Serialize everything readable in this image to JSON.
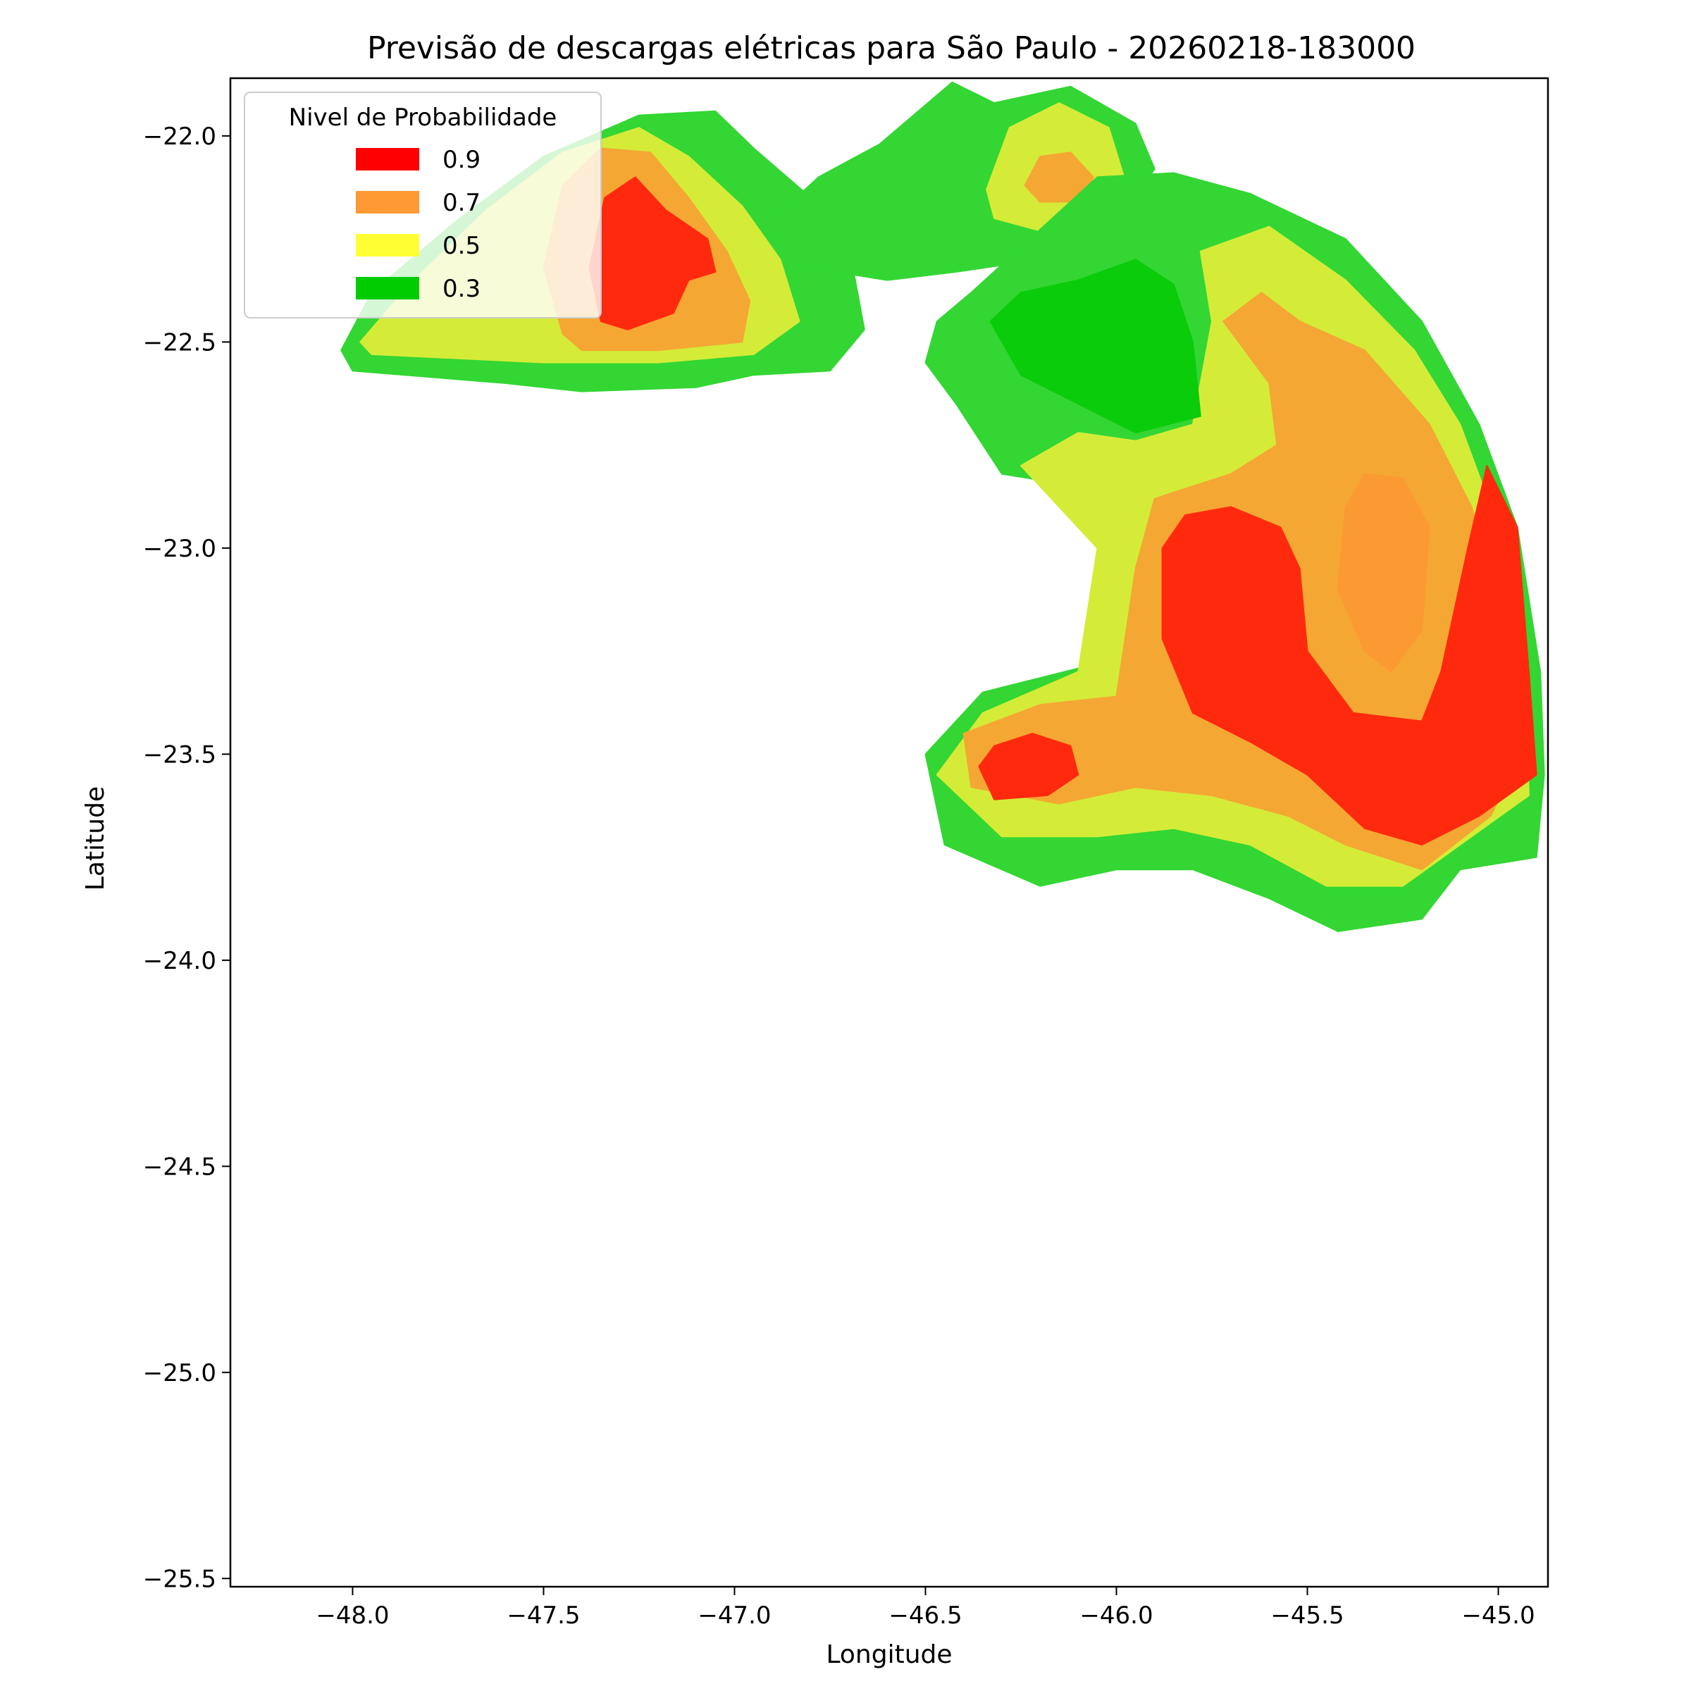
{
  "chart_data": {
    "type": "contour",
    "title": "Previsão de descargas elétricas para São Paulo - 20260218-183000",
    "xlabel": "Longitude",
    "ylabel": "Latitude",
    "xlim": [
      -48.32,
      -44.87
    ],
    "ylim": [
      -25.52,
      -21.86
    ],
    "xticks": [
      -48.0,
      -47.5,
      -47.0,
      -46.5,
      -46.0,
      -45.5,
      -45.0
    ],
    "xtick_labels": [
      "−48.0",
      "−47.5",
      "−47.0",
      "−46.5",
      "−46.0",
      "−45.5",
      "−45.0"
    ],
    "yticks": [
      -22.0,
      -22.5,
      -23.0,
      -23.5,
      -24.0,
      -24.5,
      -25.0,
      -25.5
    ],
    "ytick_labels": [
      "−22.0",
      "−22.5",
      "−23.0",
      "−23.5",
      "−24.0",
      "−24.5",
      "−25.0",
      "−25.5"
    ],
    "grid": false,
    "legend": {
      "title": "Nivel de Probabilidade",
      "placement": "upper-left",
      "entries": [
        {
          "label": "0.9",
          "color": "#ff0000"
        },
        {
          "label": "0.7",
          "color": "#ff9933"
        },
        {
          "label": "0.5",
          "color": "#ffff33"
        },
        {
          "label": "0.3",
          "color": "#00cc00"
        }
      ]
    },
    "level_colors": {
      "green": "#33d633",
      "dark_green": "#0acc0a",
      "yellow": "#d4ec38",
      "orange": "#f5a733",
      "orange_core": "#fb9a33",
      "red": "#ff2a0d"
    },
    "regions": [
      {
        "name": "west-cell-green",
        "color": "#33d633",
        "points": [
          [
            -48.03,
            -22.52
          ],
          [
            -47.95,
            -22.38
          ],
          [
            -47.72,
            -22.2
          ],
          [
            -47.5,
            -22.05
          ],
          [
            -47.25,
            -21.95
          ],
          [
            -47.05,
            -21.94
          ],
          [
            -46.95,
            -22.03
          ],
          [
            -46.8,
            -22.15
          ],
          [
            -46.7,
            -22.27
          ],
          [
            -46.66,
            -22.47
          ],
          [
            -46.75,
            -22.57
          ],
          [
            -46.95,
            -22.58
          ],
          [
            -47.1,
            -22.61
          ],
          [
            -47.4,
            -22.62
          ],
          [
            -47.6,
            -22.6
          ],
          [
            -48.0,
            -22.57
          ]
        ]
      },
      {
        "name": "west-cell-yellow",
        "color": "#d4ec38",
        "points": [
          [
            -47.98,
            -22.5
          ],
          [
            -47.85,
            -22.36
          ],
          [
            -47.65,
            -22.18
          ],
          [
            -47.45,
            -22.04
          ],
          [
            -47.25,
            -21.98
          ],
          [
            -47.12,
            -22.05
          ],
          [
            -46.98,
            -22.17
          ],
          [
            -46.88,
            -22.3
          ],
          [
            -46.83,
            -22.45
          ],
          [
            -46.95,
            -22.53
          ],
          [
            -47.2,
            -22.55
          ],
          [
            -47.5,
            -22.55
          ],
          [
            -47.95,
            -22.53
          ]
        ]
      },
      {
        "name": "west-cell-orange",
        "color": "#f5a733",
        "points": [
          [
            -47.45,
            -22.48
          ],
          [
            -47.5,
            -22.32
          ],
          [
            -47.45,
            -22.12
          ],
          [
            -47.35,
            -22.03
          ],
          [
            -47.22,
            -22.04
          ],
          [
            -47.12,
            -22.15
          ],
          [
            -47.02,
            -22.28
          ],
          [
            -46.96,
            -22.4
          ],
          [
            -46.98,
            -22.5
          ],
          [
            -47.2,
            -22.52
          ],
          [
            -47.4,
            -22.52
          ]
        ]
      },
      {
        "name": "west-cell-red",
        "color": "#ff2a0d",
        "points": [
          [
            -47.35,
            -22.45
          ],
          [
            -47.38,
            -22.32
          ],
          [
            -47.34,
            -22.15
          ],
          [
            -47.26,
            -22.1
          ],
          [
            -47.18,
            -22.18
          ],
          [
            -47.07,
            -22.25
          ],
          [
            -47.05,
            -22.33
          ],
          [
            -47.12,
            -22.35
          ],
          [
            -47.16,
            -22.43
          ],
          [
            -47.28,
            -22.47
          ]
        ]
      },
      {
        "name": "north-cell-green",
        "color": "#33d633",
        "points": [
          [
            -46.92,
            -22.22
          ],
          [
            -46.78,
            -22.1
          ],
          [
            -46.62,
            -22.02
          ],
          [
            -46.43,
            -21.87
          ],
          [
            -46.32,
            -21.92
          ],
          [
            -46.12,
            -21.88
          ],
          [
            -45.95,
            -21.97
          ],
          [
            -45.9,
            -22.08
          ],
          [
            -46.0,
            -22.22
          ],
          [
            -46.2,
            -22.3
          ],
          [
            -46.42,
            -22.33
          ],
          [
            -46.6,
            -22.35
          ],
          [
            -46.8,
            -22.32
          ]
        ]
      },
      {
        "name": "north-cell-yellow",
        "color": "#d4ec38",
        "points": [
          [
            -46.34,
            -22.13
          ],
          [
            -46.28,
            -21.98
          ],
          [
            -46.15,
            -21.92
          ],
          [
            -46.02,
            -21.98
          ],
          [
            -45.98,
            -22.1
          ],
          [
            -46.05,
            -22.2
          ],
          [
            -46.2,
            -22.23
          ],
          [
            -46.32,
            -22.2
          ]
        ]
      },
      {
        "name": "north-cell-orange",
        "color": "#f5a733",
        "points": [
          [
            -46.24,
            -22.12
          ],
          [
            -46.2,
            -22.05
          ],
          [
            -46.12,
            -22.04
          ],
          [
            -46.06,
            -22.1
          ],
          [
            -46.1,
            -22.16
          ],
          [
            -46.2,
            -22.16
          ]
        ]
      },
      {
        "name": "east-band-green",
        "color": "#33d633",
        "points": [
          [
            -46.47,
            -22.45
          ],
          [
            -46.38,
            -22.38
          ],
          [
            -46.25,
            -22.27
          ],
          [
            -46.05,
            -22.1
          ],
          [
            -45.85,
            -22.09
          ],
          [
            -45.65,
            -22.14
          ],
          [
            -45.4,
            -22.25
          ],
          [
            -45.2,
            -22.45
          ],
          [
            -45.05,
            -22.7
          ],
          [
            -44.95,
            -22.95
          ],
          [
            -44.89,
            -23.3
          ],
          [
            -44.88,
            -23.55
          ],
          [
            -44.9,
            -23.75
          ],
          [
            -45.1,
            -23.78
          ],
          [
            -45.2,
            -23.9
          ],
          [
            -45.42,
            -23.93
          ],
          [
            -45.6,
            -23.85
          ],
          [
            -45.8,
            -23.78
          ],
          [
            -46.0,
            -23.78
          ],
          [
            -46.2,
            -23.82
          ],
          [
            -46.45,
            -23.72
          ],
          [
            -46.5,
            -23.5
          ],
          [
            -46.35,
            -23.35
          ],
          [
            -46.05,
            -23.28
          ],
          [
            -45.98,
            -23.0
          ],
          [
            -46.1,
            -22.85
          ],
          [
            -46.3,
            -22.82
          ],
          [
            -46.42,
            -22.65
          ],
          [
            -46.5,
            -22.55
          ]
        ]
      },
      {
        "name": "east-band-yellow",
        "color": "#d4ec38",
        "points": [
          [
            -46.25,
            -22.8
          ],
          [
            -46.1,
            -22.72
          ],
          [
            -45.95,
            -22.74
          ],
          [
            -45.8,
            -22.7
          ],
          [
            -45.75,
            -22.45
          ],
          [
            -45.78,
            -22.28
          ],
          [
            -45.6,
            -22.22
          ],
          [
            -45.4,
            -22.35
          ],
          [
            -45.22,
            -22.52
          ],
          [
            -45.1,
            -22.7
          ],
          [
            -45.0,
            -22.95
          ],
          [
            -44.93,
            -23.3
          ],
          [
            -44.92,
            -23.6
          ],
          [
            -45.1,
            -23.72
          ],
          [
            -45.25,
            -23.82
          ],
          [
            -45.45,
            -23.82
          ],
          [
            -45.65,
            -23.72
          ],
          [
            -45.85,
            -23.68
          ],
          [
            -46.05,
            -23.7
          ],
          [
            -46.3,
            -23.7
          ],
          [
            -46.47,
            -23.55
          ],
          [
            -46.35,
            -23.4
          ],
          [
            -46.1,
            -23.3
          ],
          [
            -46.05,
            -23.0
          ],
          [
            -46.15,
            -22.9
          ]
        ]
      },
      {
        "name": "east-band-orange",
        "color": "#f5a733",
        "points": [
          [
            -45.72,
            -22.45
          ],
          [
            -45.62,
            -22.38
          ],
          [
            -45.52,
            -22.45
          ],
          [
            -45.35,
            -22.52
          ],
          [
            -45.18,
            -22.7
          ],
          [
            -45.07,
            -22.9
          ],
          [
            -44.98,
            -23.2
          ],
          [
            -44.94,
            -23.5
          ],
          [
            -45.02,
            -23.65
          ],
          [
            -45.2,
            -23.78
          ],
          [
            -45.4,
            -23.72
          ],
          [
            -45.55,
            -23.65
          ],
          [
            -45.75,
            -23.6
          ],
          [
            -45.95,
            -23.58
          ],
          [
            -46.15,
            -23.62
          ],
          [
            -46.38,
            -23.58
          ],
          [
            -46.4,
            -23.45
          ],
          [
            -46.2,
            -23.38
          ],
          [
            -46.0,
            -23.36
          ],
          [
            -45.95,
            -23.05
          ],
          [
            -45.9,
            -22.88
          ],
          [
            -45.7,
            -22.82
          ],
          [
            -45.58,
            -22.75
          ],
          [
            -45.6,
            -22.6
          ]
        ]
      },
      {
        "name": "east-band-red",
        "color": "#ff2a0d",
        "points": [
          [
            -45.88,
            -23.0
          ],
          [
            -45.82,
            -22.92
          ],
          [
            -45.7,
            -22.9
          ],
          [
            -45.57,
            -22.95
          ],
          [
            -45.52,
            -23.05
          ],
          [
            -45.5,
            -23.25
          ],
          [
            -45.38,
            -23.4
          ],
          [
            -45.2,
            -23.42
          ],
          [
            -45.15,
            -23.3
          ],
          [
            -45.08,
            -23.0
          ],
          [
            -45.03,
            -22.8
          ],
          [
            -44.95,
            -22.95
          ],
          [
            -44.92,
            -23.3
          ],
          [
            -44.9,
            -23.55
          ],
          [
            -45.05,
            -23.65
          ],
          [
            -45.2,
            -23.72
          ],
          [
            -45.35,
            -23.68
          ],
          [
            -45.5,
            -23.55
          ],
          [
            -45.65,
            -23.47
          ],
          [
            -45.8,
            -23.4
          ],
          [
            -45.88,
            -23.22
          ]
        ]
      },
      {
        "name": "east-core-orange",
        "color": "#fb9a33",
        "points": [
          [
            -45.4,
            -22.9
          ],
          [
            -45.35,
            -22.82
          ],
          [
            -45.25,
            -22.83
          ],
          [
            -45.18,
            -22.95
          ],
          [
            -45.2,
            -23.2
          ],
          [
            -45.28,
            -23.3
          ],
          [
            -45.35,
            -23.25
          ],
          [
            -45.42,
            -23.1
          ]
        ]
      },
      {
        "name": "southwest-cell-red",
        "color": "#ff2a0d",
        "points": [
          [
            -46.36,
            -23.53
          ],
          [
            -46.32,
            -23.48
          ],
          [
            -46.22,
            -23.45
          ],
          [
            -46.12,
            -23.48
          ],
          [
            -46.1,
            -23.55
          ],
          [
            -46.18,
            -23.6
          ],
          [
            -46.32,
            -23.61
          ]
        ]
      },
      {
        "name": "inner-cell-dark-green",
        "color": "#0acc0a",
        "points": [
          [
            -46.33,
            -22.45
          ],
          [
            -46.25,
            -22.38
          ],
          [
            -46.1,
            -22.35
          ],
          [
            -45.95,
            -22.3
          ],
          [
            -45.85,
            -22.36
          ],
          [
            -45.8,
            -22.5
          ],
          [
            -45.78,
            -22.68
          ],
          [
            -45.95,
            -22.72
          ],
          [
            -46.1,
            -22.65
          ],
          [
            -46.25,
            -22.58
          ]
        ]
      }
    ]
  }
}
